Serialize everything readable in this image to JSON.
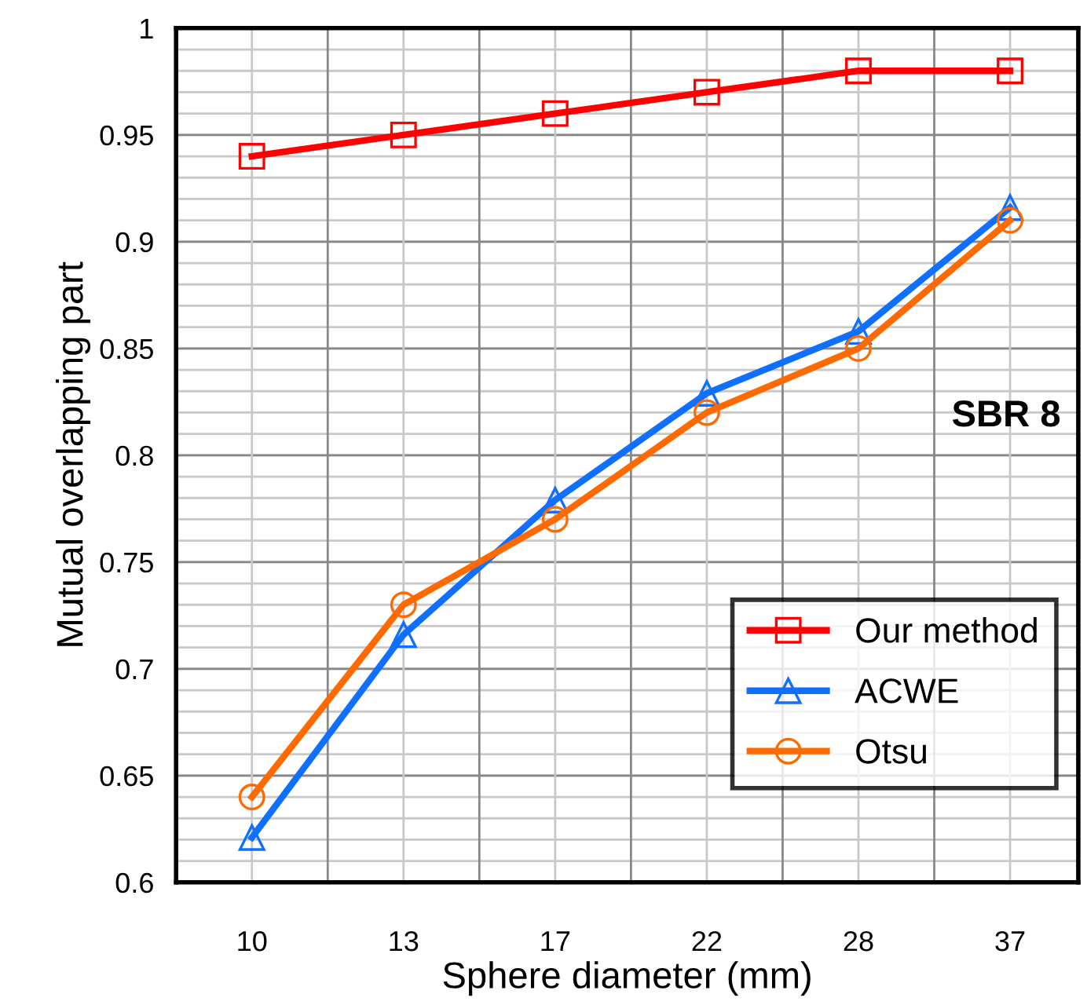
{
  "chart_data": {
    "type": "line",
    "xlabel": "Sphere diameter (mm)",
    "ylabel": "Mutual overlapping part",
    "categories": [
      "10",
      "13",
      "17",
      "22",
      "28",
      "37"
    ],
    "series": [
      {
        "name": "Our method",
        "color": "#ff0000",
        "marker": "square",
        "values": [
          0.94,
          0.95,
          0.96,
          0.97,
          0.98,
          0.98
        ]
      },
      {
        "name": "ACWE",
        "color": "#0f6fff",
        "marker": "triangle",
        "values": [
          0.621,
          0.716,
          0.779,
          0.829,
          0.858,
          0.916
        ]
      },
      {
        "name": "Otsu",
        "color": "#ff6a00",
        "marker": "circle",
        "values": [
          0.64,
          0.73,
          0.77,
          0.82,
          0.85,
          0.91
        ]
      }
    ],
    "ylim": [
      0.6,
      1
    ],
    "yticks": [
      0.6,
      0.65,
      0.7,
      0.75,
      0.8,
      0.85,
      0.9,
      0.95,
      1
    ],
    "grid": true,
    "legend": "bottom right",
    "line_style": "solid",
    "annotations": [
      "SBR 8"
    ]
  }
}
